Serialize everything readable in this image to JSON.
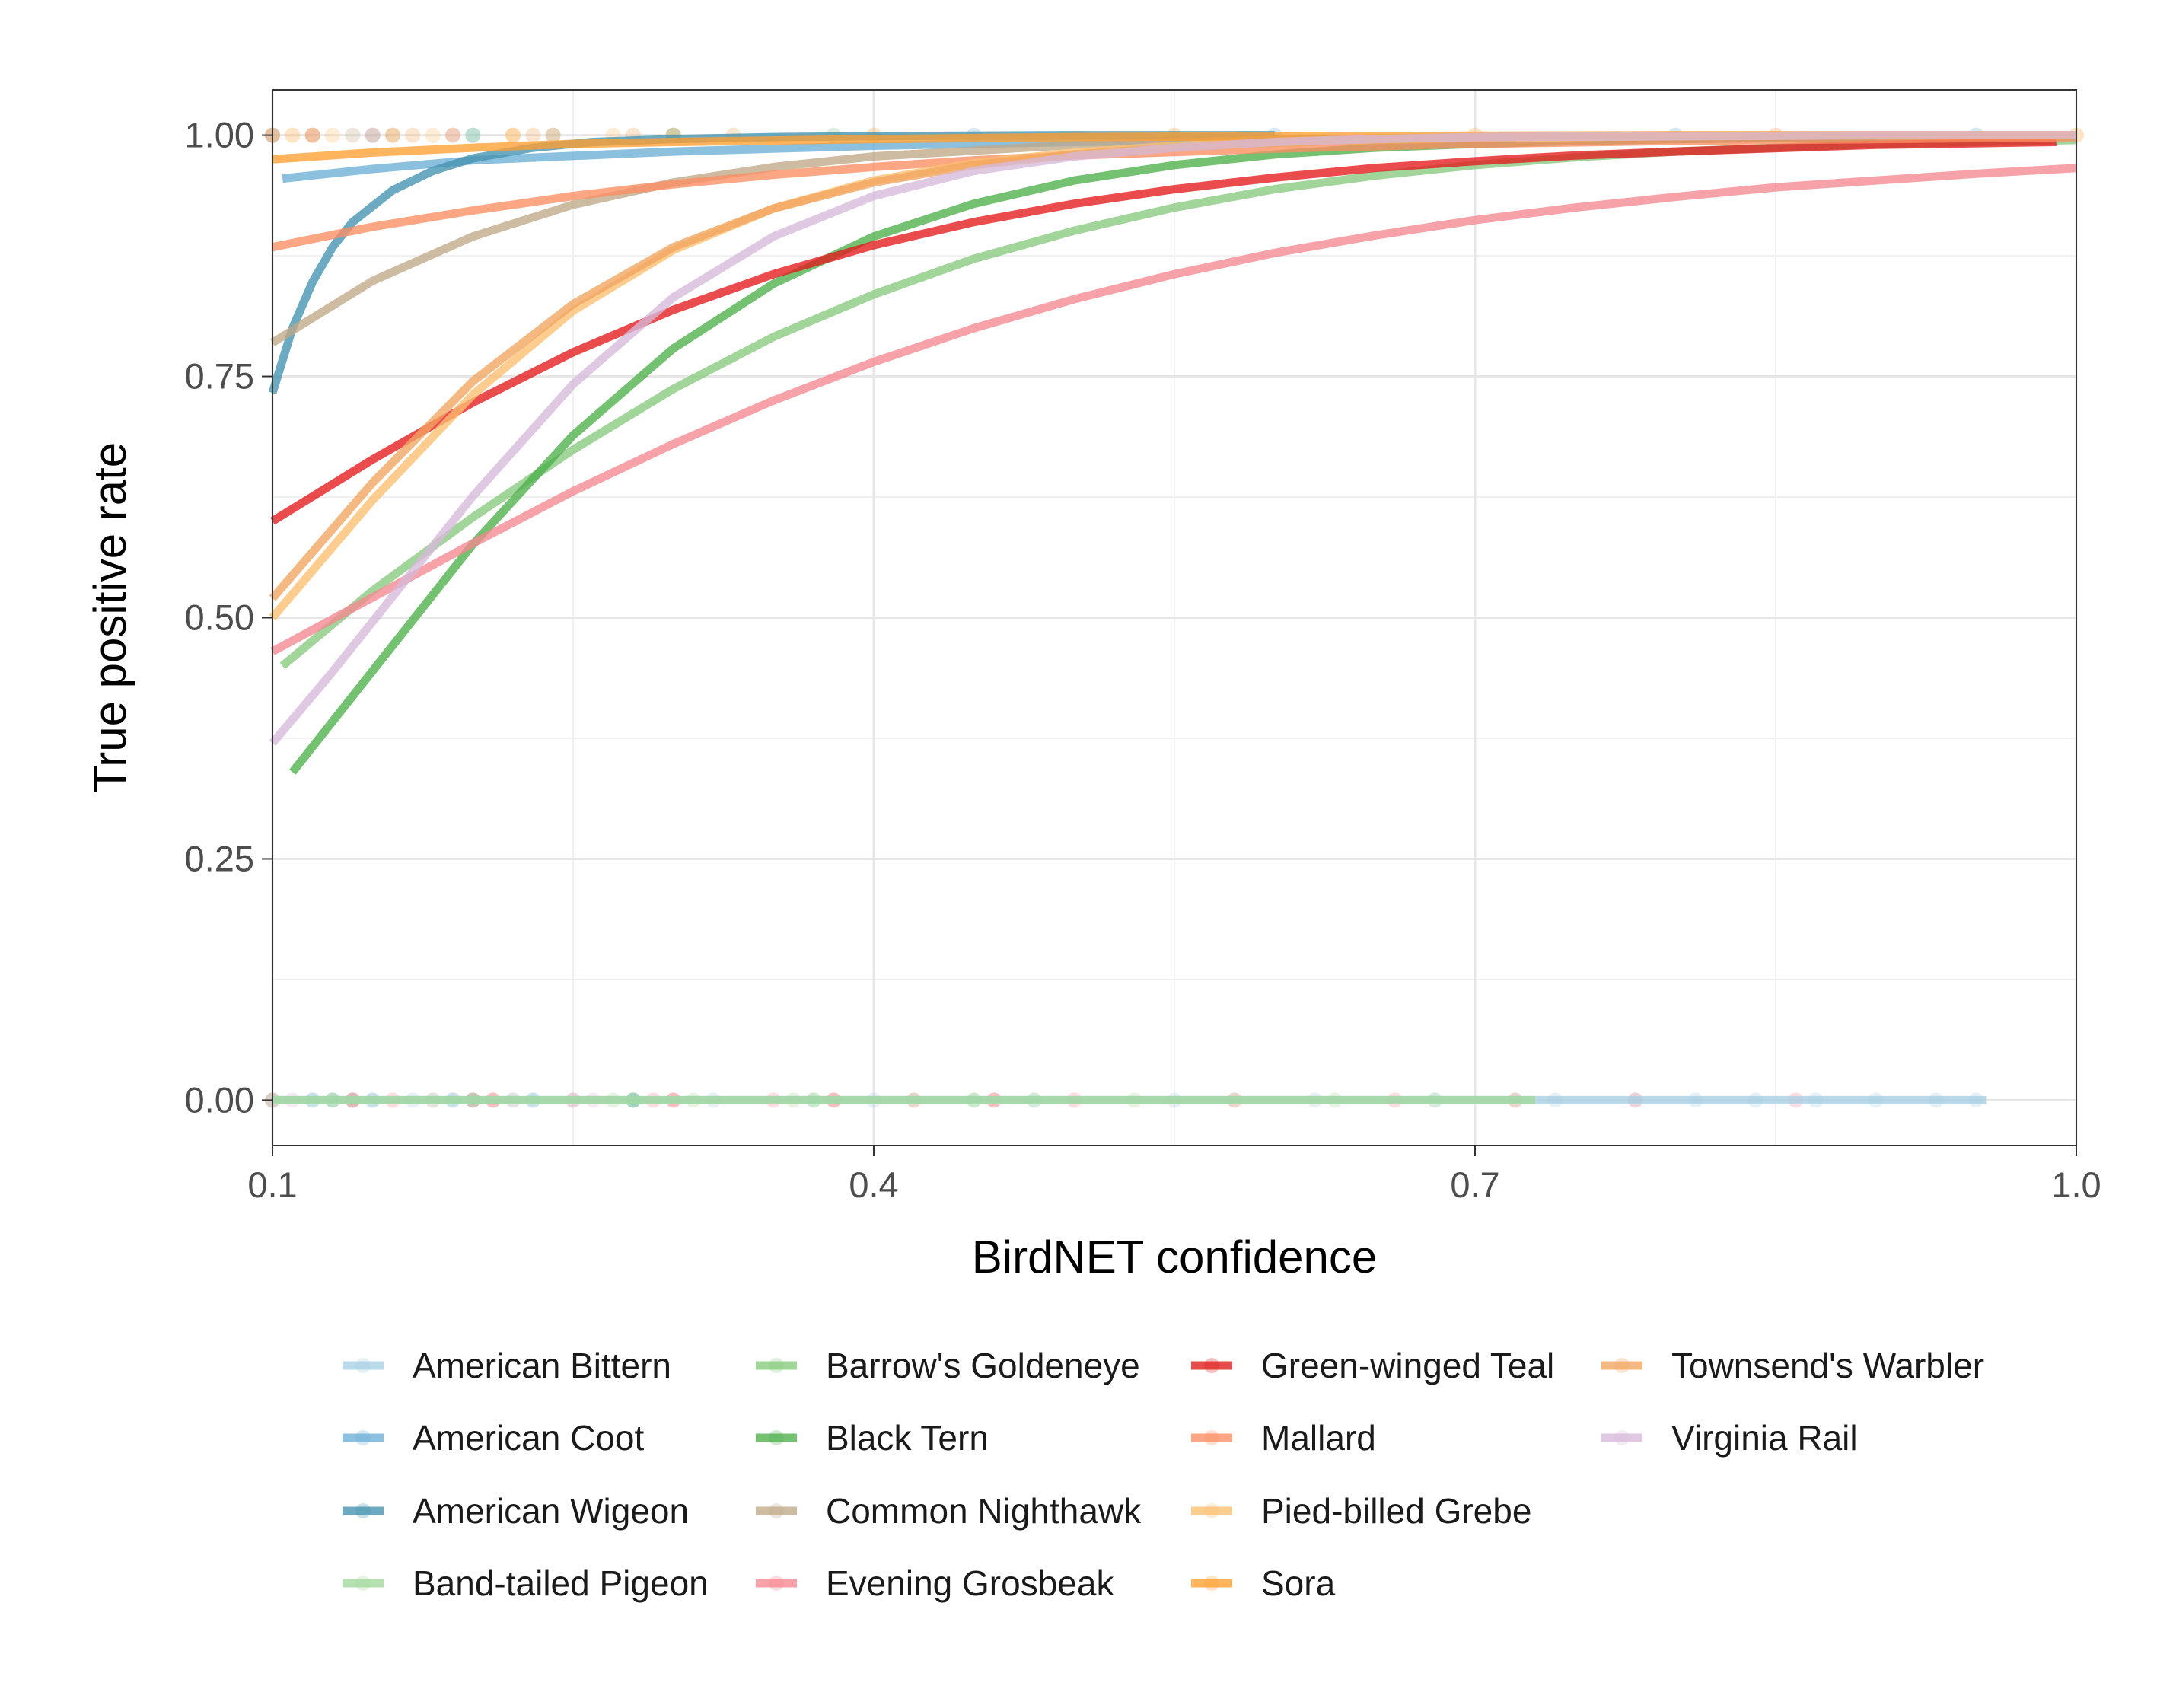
{
  "chart_data": {
    "type": "line",
    "title": "",
    "xlabel": "BirdNET confidence",
    "ylabel": "True positive rate",
    "xlim": [
      0.1,
      1.0
    ],
    "ylim": [
      -0.047,
      1.047
    ],
    "x_ticks": [
      0.1,
      0.4,
      0.7,
      1.0
    ],
    "x_tick_labels": [
      "0.1",
      "0.4",
      "0.7",
      "1.0"
    ],
    "y_ticks": [
      0.0,
      0.25,
      0.5,
      0.75,
      1.0
    ],
    "y_tick_labels": [
      "0.00",
      "0.25",
      "0.50",
      "0.75",
      "1.00"
    ],
    "grid": true,
    "legend_position": "bottom",
    "series": [
      {
        "name": "American Bittern",
        "color": "#a6cee3",
        "x": [
          0.1,
          0.3,
          0.5,
          0.7,
          0.955
        ],
        "y": [
          0.0,
          0.0,
          0.0,
          0.0,
          0.0
        ],
        "points_x": [
          0.1,
          0.13,
          0.17,
          0.2,
          0.25,
          0.32,
          0.4,
          0.48,
          0.55,
          0.62,
          0.68,
          0.74,
          0.78,
          0.81,
          0.84,
          0.87,
          0.9,
          0.93,
          0.95
        ],
        "points_y": 0
      },
      {
        "name": "American Coot",
        "color": "#6baed6",
        "x": [
          0.105,
          0.15,
          0.2,
          0.3,
          0.4,
          0.5,
          0.6,
          0.8,
          1.0
        ],
        "y": [
          0.955,
          0.965,
          0.974,
          0.983,
          0.989,
          0.993,
          0.995,
          0.998,
          0.999
        ],
        "points_x": [
          0.1,
          0.15,
          0.2,
          0.3,
          0.45,
          0.6,
          0.8,
          0.95
        ],
        "points_y": 1
      },
      {
        "name": "American Wigeon",
        "color": "#4292b0",
        "x": [
          0.1,
          0.11,
          0.12,
          0.13,
          0.14,
          0.16,
          0.18,
          0.2,
          0.23,
          0.26,
          0.3,
          0.35,
          0.4,
          0.5,
          0.6
        ],
        "y": [
          0.733,
          0.8,
          0.848,
          0.884,
          0.91,
          0.943,
          0.963,
          0.976,
          0.987,
          0.993,
          0.996,
          0.998,
          0.999,
          1.0,
          1.0
        ],
        "points_x": [
          0.12,
          0.15,
          0.19,
          0.23,
          0.28
        ],
        "points_y": 0
      },
      {
        "name": "Band-tailed Pigeon",
        "color": "#a1d99b",
        "x": [
          0.1,
          0.2,
          0.3,
          0.4,
          0.5,
          0.6,
          0.73
        ],
        "y": [
          0.0,
          0.0,
          0.0,
          0.0,
          0.0,
          0.0,
          0.0
        ],
        "points_x": [
          0.1,
          0.14,
          0.18,
          0.22,
          0.27,
          0.31,
          0.36,
          0.42,
          0.48,
          0.53,
          0.58,
          0.63,
          0.68,
          0.72
        ],
        "points_y": 0
      },
      {
        "name": "Barrow's Goldeneye",
        "color": "#86c97d",
        "x": [
          0.105,
          0.15,
          0.2,
          0.25,
          0.3,
          0.35,
          0.4,
          0.45,
          0.5,
          0.55,
          0.6,
          0.65,
          0.7,
          0.75,
          0.8,
          0.9,
          1.0
        ],
        "y": [
          0.45,
          0.528,
          0.604,
          0.674,
          0.737,
          0.791,
          0.835,
          0.872,
          0.901,
          0.925,
          0.944,
          0.958,
          0.969,
          0.977,
          0.983,
          0.991,
          0.995
        ],
        "points_x": [
          0.2,
          0.24,
          0.3,
          0.38
        ],
        "points_y": 1
      },
      {
        "name": "Black Tern",
        "color": "#4daf4a",
        "x": [
          0.11,
          0.15,
          0.2,
          0.25,
          0.3,
          0.35,
          0.4,
          0.45,
          0.5,
          0.55,
          0.6,
          0.65,
          0.7,
          0.75,
          0.8,
          0.9
        ],
        "y": [
          0.34,
          0.445,
          0.576,
          0.689,
          0.779,
          0.846,
          0.895,
          0.929,
          0.953,
          0.969,
          0.98,
          0.987,
          0.991,
          0.994,
          0.996,
          0.998
        ],
        "points_x": [
          0.13,
          0.2,
          0.28,
          0.37,
          0.45
        ],
        "points_y": 0
      },
      {
        "name": "Common Nighthawk",
        "color": "#bfa888",
        "x": [
          0.1,
          0.15,
          0.2,
          0.25,
          0.3,
          0.35,
          0.4,
          0.5,
          0.6,
          0.7,
          0.8,
          0.9,
          1.0
        ],
        "y": [
          0.785,
          0.849,
          0.895,
          0.928,
          0.951,
          0.967,
          0.978,
          0.99,
          0.995,
          0.998,
          0.999,
          1.0,
          1.0
        ],
        "points_x": [
          0.1,
          0.12,
          0.14,
          0.16,
          0.19
        ],
        "points_y": 1
      },
      {
        "name": "Evening Grosbeak",
        "color": "#f4888f",
        "x": [
          0.1,
          0.15,
          0.2,
          0.25,
          0.3,
          0.35,
          0.4,
          0.45,
          0.5,
          0.55,
          0.6,
          0.65,
          0.7,
          0.75,
          0.8,
          0.85,
          0.9,
          0.95,
          1.0
        ],
        "y": [
          0.465,
          0.521,
          0.577,
          0.631,
          0.68,
          0.725,
          0.765,
          0.8,
          0.83,
          0.856,
          0.878,
          0.896,
          0.912,
          0.925,
          0.936,
          0.946,
          0.953,
          0.96,
          0.966
        ],
        "points_x": [
          0.1,
          0.16,
          0.2,
          0.25,
          0.29,
          0.35,
          0.42,
          0.5,
          0.58,
          0.66,
          0.72,
          0.78,
          0.86
        ],
        "points_y": 0
      },
      {
        "name": "Green-winged Teal",
        "color": "#e41a1c",
        "x": [
          0.1,
          0.15,
          0.2,
          0.25,
          0.3,
          0.35,
          0.4,
          0.45,
          0.5,
          0.55,
          0.6,
          0.65,
          0.7,
          0.75,
          0.8,
          0.9,
          0.99
        ],
        "y": [
          0.6,
          0.664,
          0.723,
          0.775,
          0.819,
          0.856,
          0.886,
          0.91,
          0.929,
          0.944,
          0.956,
          0.966,
          0.973,
          0.979,
          0.983,
          0.99,
          0.993
        ],
        "points_x": [
          0.14,
          0.21,
          0.3,
          0.38,
          0.46
        ],
        "points_y": 0
      },
      {
        "name": "Mallard",
        "color": "#fc8d62",
        "x": [
          0.1,
          0.15,
          0.2,
          0.25,
          0.3,
          0.35,
          0.4,
          0.45,
          0.5,
          0.6,
          0.7,
          0.8,
          0.9,
          1.0
        ],
        "y": [
          0.884,
          0.905,
          0.922,
          0.937,
          0.949,
          0.959,
          0.967,
          0.974,
          0.979,
          0.986,
          0.991,
          0.994,
          0.996,
          0.998
        ],
        "points_x": [
          0.1,
          0.12,
          0.15,
          0.19,
          0.24
        ],
        "points_y": 1
      },
      {
        "name": "Pied-billed Grebe",
        "color": "#fdbf6f",
        "x": [
          0.1,
          0.15,
          0.2,
          0.25,
          0.3,
          0.35,
          0.4,
          0.45,
          0.5,
          0.55,
          0.6,
          0.65,
          0.7,
          0.8,
          0.9,
          1.0
        ],
        "y": [
          0.5,
          0.622,
          0.731,
          0.818,
          0.881,
          0.924,
          0.953,
          0.971,
          0.982,
          0.989,
          0.993,
          0.996,
          0.997,
          0.999,
          1.0,
          1.0
        ],
        "points_x": [
          0.1,
          0.13,
          0.18,
          0.22,
          0.27
        ],
        "points_y": 1
      },
      {
        "name": "Sora",
        "color": "#ff9f30",
        "x": [
          0.1,
          0.15,
          0.2,
          0.25,
          0.3,
          0.4,
          0.5,
          0.6,
          0.8,
          1.0
        ],
        "y": [
          0.975,
          0.982,
          0.987,
          0.991,
          0.993,
          0.996,
          0.998,
          0.999,
          1.0,
          1.0
        ],
        "points_x": [
          0.11,
          0.16,
          0.22,
          0.3,
          0.4,
          0.55,
          0.7,
          0.85,
          1.0
        ],
        "points_y": 1
      },
      {
        "name": "Townsend's Warbler",
        "color": "#f1a55f",
        "x": [
          0.1,
          0.15,
          0.2,
          0.25,
          0.3,
          0.35,
          0.4,
          0.45,
          0.5,
          0.55,
          0.6,
          0.65,
          0.7,
          0.72
        ],
        "y": [
          0.52,
          0.64,
          0.745,
          0.825,
          0.884,
          0.924,
          0.951,
          0.969,
          0.98,
          0.987,
          0.992,
          0.995,
          0.997,
          0.997
        ],
        "points_x": [
          0.12,
          0.17,
          0.23,
          0.28,
          0.33
        ],
        "points_y": 1
      },
      {
        "name": "Virginia Rail",
        "color": "#d6b9d9",
        "x": [
          0.1,
          0.13,
          0.16,
          0.2,
          0.25,
          0.3,
          0.35,
          0.4,
          0.45,
          0.5,
          0.55,
          0.6,
          0.65,
          0.7,
          0.8,
          0.9,
          1.0
        ],
        "y": [
          0.37,
          0.444,
          0.522,
          0.626,
          0.742,
          0.832,
          0.895,
          0.937,
          0.963,
          0.978,
          0.987,
          0.993,
          0.996,
          0.998,
          0.999,
          1.0,
          1.0
        ],
        "points_x": [
          0.11,
          0.14,
          0.18,
          0.22,
          0.26
        ],
        "points_y": 0
      }
    ]
  }
}
